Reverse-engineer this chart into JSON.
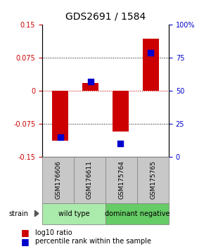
{
  "title": "GDS2691 / 1584",
  "samples": [
    "GSM176606",
    "GSM176611",
    "GSM175764",
    "GSM175765"
  ],
  "log10_ratio": [
    -0.113,
    0.018,
    -0.092,
    0.118
  ],
  "percentile_rank": [
    15,
    57,
    10,
    79
  ],
  "groups": [
    {
      "name": "wild type",
      "indices": [
        0,
        1
      ],
      "color": "#aaeaaa"
    },
    {
      "name": "dominant negative",
      "indices": [
        2,
        3
      ],
      "color": "#66cc66"
    }
  ],
  "ylim": [
    -0.15,
    0.15
  ],
  "y2lim": [
    0,
    100
  ],
  "y_ticks": [
    -0.15,
    -0.075,
    0,
    0.075,
    0.15
  ],
  "y2_ticks": [
    0,
    25,
    50,
    75,
    100
  ],
  "y_tick_labels": [
    "-0.15",
    "-0.075",
    "0",
    "0.075",
    "0.15"
  ],
  "y2_tick_labels": [
    "0",
    "25",
    "50",
    "75",
    "100%"
  ],
  "bar_color": "#cc0000",
  "dot_color": "#0000cc",
  "zero_line_color": "#cc0000",
  "sample_box_color": "#c8c8c8",
  "bar_width": 0.55,
  "dot_size": 28,
  "title_fontsize": 10,
  "tick_fontsize": 7,
  "sample_fontsize": 6.5,
  "group_fontsize": 7,
  "legend_fontsize": 7
}
